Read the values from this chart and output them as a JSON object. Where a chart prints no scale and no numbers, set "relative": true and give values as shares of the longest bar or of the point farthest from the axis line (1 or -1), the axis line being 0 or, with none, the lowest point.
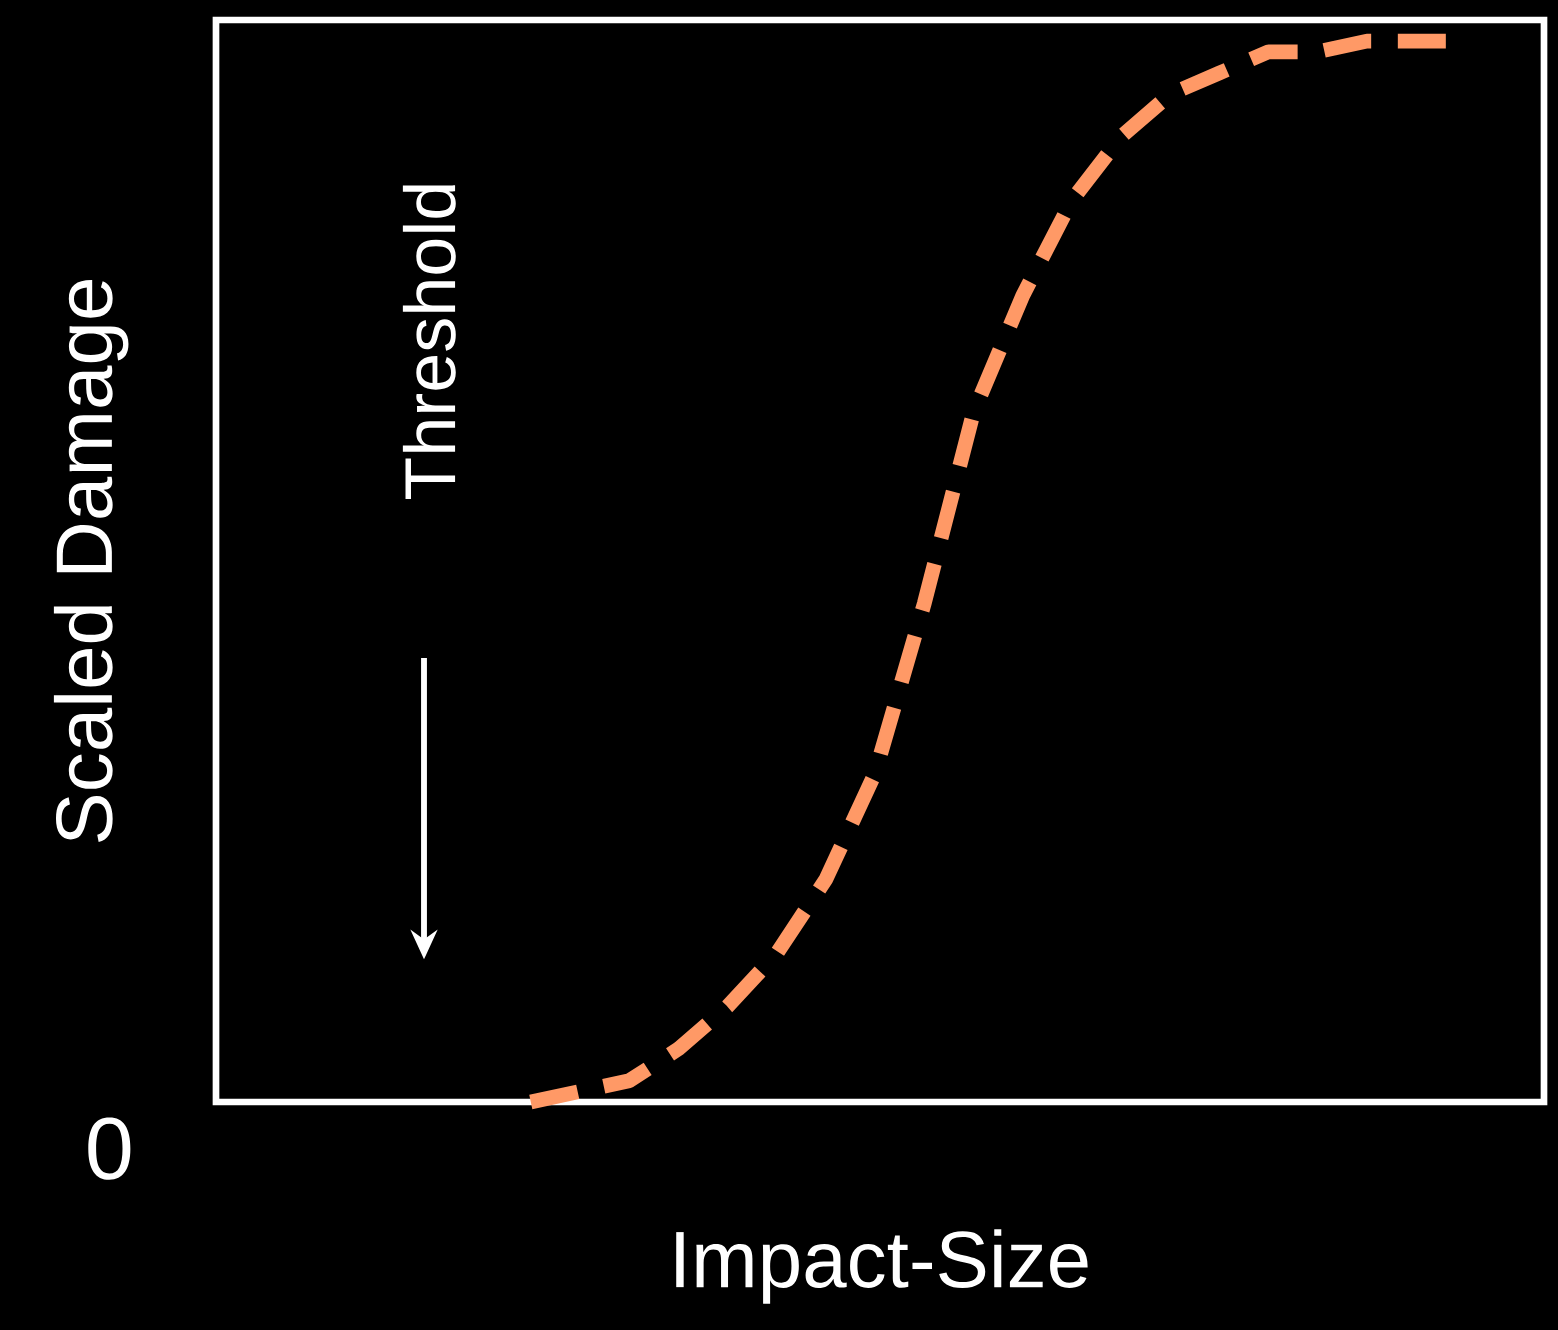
{
  "chart_data": {
    "type": "line",
    "relative": true,
    "xlabel": "Impact-Size",
    "ylabel": "Scaled Damage",
    "annotations": [
      "Threshold",
      "0"
    ],
    "categories": [
      null,
      null,
      null,
      null,
      null,
      null,
      null,
      null,
      null,
      null,
      null,
      null,
      null,
      null,
      null,
      null,
      null,
      null,
      null,
      null,
      null,
      null,
      null,
      null
    ],
    "series": [
      {
        "color": "#ff9966",
        "values": [
          null,
          null,
          null,
          0,
          0.01,
          0.02,
          0.05,
          0.09,
          0.14,
          0.21,
          0.31,
          0.47,
          0.65,
          0.76,
          0.85,
          0.91,
          0.95,
          0.97,
          0.99,
          0.99,
          1.0,
          1.0,
          1.0,
          null
        ]
      }
    ],
    "line_style": "dashed",
    "marker": "none"
  }
}
